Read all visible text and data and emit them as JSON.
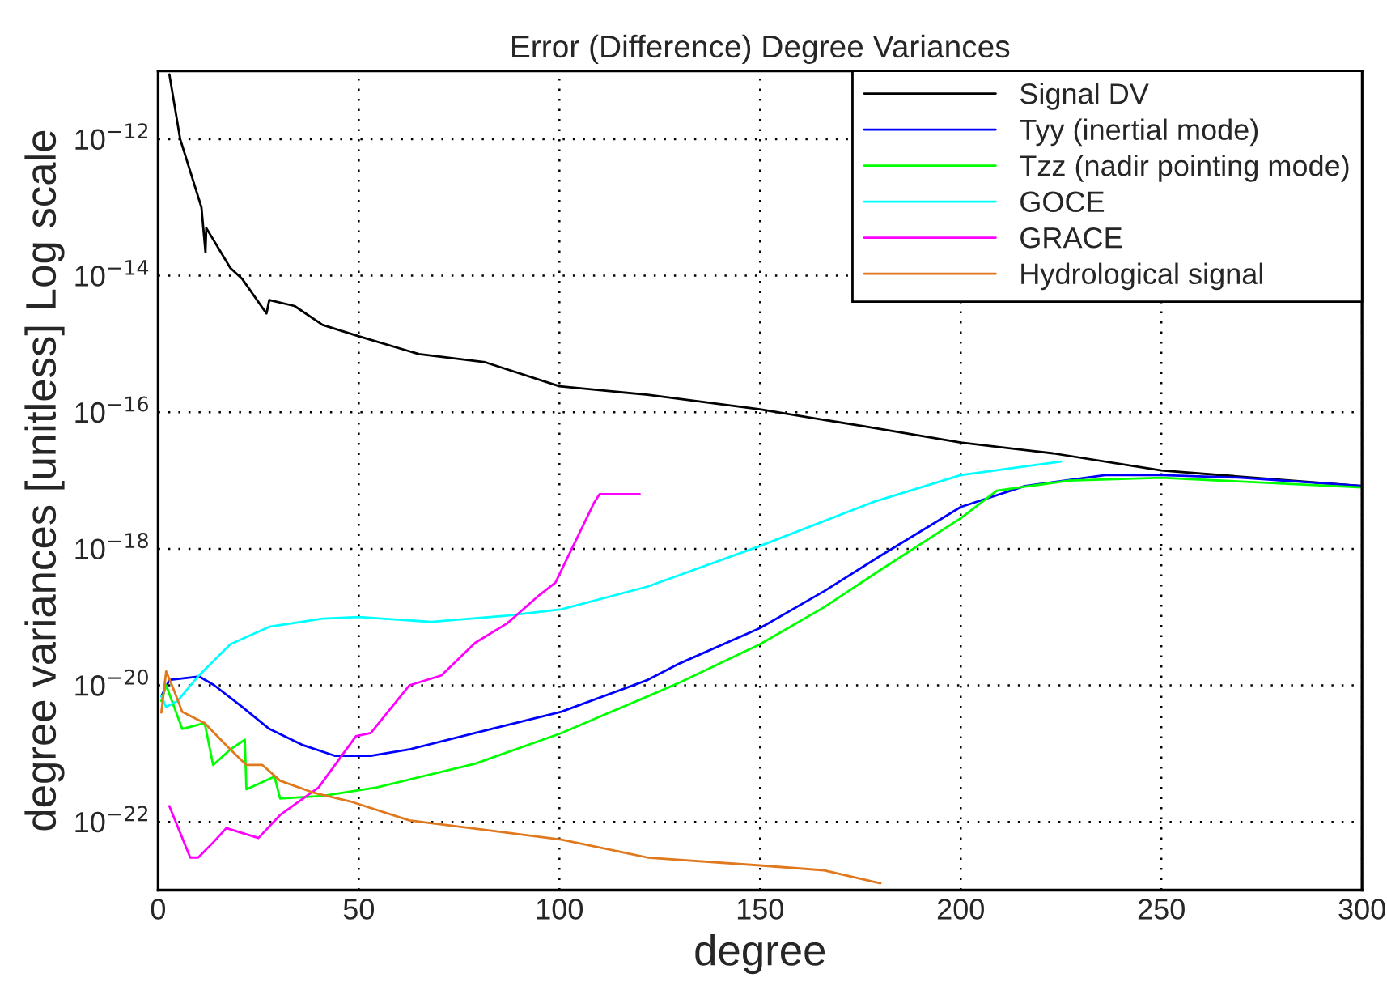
{
  "chart_data": {
    "type": "line",
    "title": "Error (Difference) Degree Variances",
    "xlabel": "degree",
    "ylabel": "degree variances [unitless] Log scale",
    "log": "y",
    "grid": true,
    "legend": "top right",
    "line_style": "solid",
    "xlim": [
      0,
      300
    ],
    "xticks": [
      0,
      50,
      100,
      150,
      200,
      250,
      300
    ],
    "ylim": [
      1e-23,
      1e-11
    ],
    "yticks": [
      {
        "value": 1e-22,
        "label": "10$^{−22}$"
      },
      {
        "value": 1e-20,
        "label": "10$^{−20}$"
      },
      {
        "value": 1e-18,
        "label": "10$^{−18}$"
      },
      {
        "value": 1e-16,
        "label": "10$^{−16}$"
      },
      {
        "value": 1e-14,
        "label": "10$^{−14}$"
      },
      {
        "value": 1e-12,
        "label": "10$^{−12}$"
      }
    ],
    "series": [
      {
        "name": "Signal DV",
        "color": "#000000",
        "x": [
          2.8,
          5.5,
          10.8,
          11.8,
          12,
          18,
          21,
          27,
          27.7,
          34,
          41,
          50,
          65,
          81.5,
          100,
          122,
          150,
          176,
          200,
          223,
          250,
          300
        ],
        "values": [
          8.9e-12,
          1e-12,
          1e-13,
          2.2e-14,
          5e-14,
          1.3e-14,
          8.9e-15,
          2.8e-15,
          4.4e-15,
          3.6e-15,
          1.9e-15,
          1.3e-15,
          7.1e-16,
          5.4e-16,
          2.4e-16,
          1.8e-16,
          1.1e-16,
          6.2e-17,
          3.6e-17,
          2.5e-17,
          1.4e-17,
          8.3e-18
        ]
      },
      {
        "name": "Tyy (inertial mode)",
        "color": "#0000ff",
        "x": [
          0.8,
          2.8,
          10.2,
          14,
          21,
          27.7,
          35.8,
          44,
          53,
          62.6,
          79,
          100.5,
          122,
          130,
          150,
          166,
          180,
          200,
          216,
          236,
          250,
          270,
          300
        ],
        "values": [
          6.9e-21,
          1.2e-20,
          1.35e-20,
          1e-20,
          4.8e-21,
          2.3e-21,
          1.35e-21,
          9.3e-22,
          9.3e-22,
          1.15e-21,
          2e-21,
          4.1e-21,
          1.2e-20,
          2.1e-20,
          6.9e-20,
          2.4e-19,
          7.9e-19,
          4.1e-18,
          8.3e-18,
          1.2e-17,
          1.2e-17,
          1.1e-17,
          8.3e-18
        ]
      },
      {
        "name": "Tzz (nadir pointing mode)",
        "color": "#00ff00",
        "x": [
          0.8,
          2,
          6,
          11.6,
          13.7,
          18,
          21.6,
          22,
          29,
          30.4,
          41,
          54.5,
          79,
          100.5,
          122,
          130,
          150,
          166,
          180,
          200,
          209,
          227,
          250,
          300
        ],
        "values": [
          5.9e-21,
          1e-20,
          2.3e-21,
          2.8e-21,
          6.8e-22,
          1.15e-21,
          1.6e-21,
          3e-22,
          4.6e-22,
          2.2e-22,
          2.4e-22,
          3.2e-22,
          7.1e-22,
          2e-21,
          6.9e-21,
          1.1e-20,
          4e-20,
          1.4e-19,
          4.9e-19,
          2.8e-18,
          7.1e-18,
          1e-17,
          1.1e-17,
          7.9e-18
        ]
      },
      {
        "name": "GOCE",
        "color": "#00ffff",
        "x": [
          0.8,
          2,
          4.8,
          10.2,
          18,
          27.7,
          41,
          50,
          68,
          87,
          100.5,
          122,
          150,
          178,
          200,
          225
        ],
        "values": [
          6.9e-21,
          4.8e-21,
          5.9e-21,
          1.4e-20,
          4e-20,
          7.2e-20,
          9.5e-20,
          1e-19,
          8.5e-20,
          1.05e-19,
          1.3e-19,
          2.8e-19,
          1.1e-18,
          4.8e-18,
          1.2e-17,
          1.9e-17
        ]
      },
      {
        "name": "GRACE",
        "color": "#ff00ff",
        "x": [
          2.8,
          8,
          10,
          14,
          17,
          25,
          30.4,
          40,
          49.3,
          53,
          62.6,
          70.6,
          79,
          87,
          95,
          99,
          108.7,
          110,
          120
        ],
        "values": [
          1.7e-22,
          3e-23,
          3e-23,
          5.2e-23,
          8.1e-23,
          5.8e-23,
          1.26e-22,
          3.2e-22,
          1.8e-21,
          2e-21,
          1e-20,
          1.4e-20,
          4.2e-20,
          8.1e-20,
          2.1e-19,
          3.2e-19,
          4.8e-18,
          6.3e-18,
          6.3e-18
        ]
      },
      {
        "name": "Hydrological signal",
        "color": "#e0781e",
        "x": [
          0.8,
          2,
          4,
          6,
          11.6,
          14,
          18,
          22,
          26,
          30.4,
          38.5,
          47.8,
          62.6,
          81.5,
          100.5,
          122,
          150,
          166,
          180
        ],
        "values": [
          4e-21,
          1.6e-20,
          8.3e-21,
          4.1e-21,
          2.8e-21,
          2e-21,
          1.15e-21,
          6.8e-22,
          6.8e-22,
          4e-22,
          2.7e-22,
          2e-22,
          1.05e-22,
          7.6e-23,
          5.5e-23,
          3e-23,
          2.3e-23,
          1.95e-23,
          1.26e-23
        ]
      }
    ]
  }
}
